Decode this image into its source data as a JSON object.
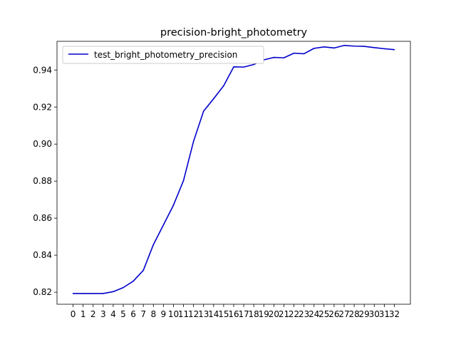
{
  "chart_data": {
    "type": "line",
    "title": "precision-bright_photometry",
    "xlabel": "",
    "ylabel": "",
    "x": [
      0,
      1,
      2,
      3,
      4,
      5,
      6,
      7,
      8,
      9,
      10,
      11,
      12,
      13,
      14,
      15,
      16,
      17,
      18,
      19,
      20,
      21,
      22,
      23,
      24,
      25,
      26,
      27,
      28,
      29,
      30,
      31,
      32
    ],
    "xticks": [
      "0",
      "1",
      "2",
      "3",
      "4",
      "5",
      "6",
      "7",
      "8",
      "9",
      "10",
      "11",
      "12",
      "13",
      "14",
      "15",
      "16",
      "17",
      "18",
      "19",
      "20",
      "21",
      "22",
      "23",
      "24",
      "25",
      "26",
      "27",
      "28",
      "29",
      "30",
      "31",
      "32"
    ],
    "yticks": [
      "0.82",
      "0.84",
      "0.86",
      "0.88",
      "0.90",
      "0.92",
      "0.94"
    ],
    "ylim": [
      0.8135,
      0.9555
    ],
    "xlim": [
      -1.6,
      33.6
    ],
    "series": [
      {
        "name": "test_bright_photometry_precision",
        "color": "#0000cc",
        "values": [
          0.8193,
          0.8193,
          0.8193,
          0.8193,
          0.8203,
          0.8225,
          0.826,
          0.8318,
          0.8457,
          0.8563,
          0.867,
          0.8803,
          0.9015,
          0.9178,
          0.9245,
          0.9315,
          0.9417,
          0.9416,
          0.943,
          0.9455,
          0.9468,
          0.9466,
          0.9491,
          0.9488,
          0.9517,
          0.9525,
          0.9519,
          0.9533,
          0.9529,
          0.9528,
          0.9521,
          0.9515,
          0.951
        ]
      }
    ],
    "legend_position": "upper-left",
    "grid": false
  }
}
